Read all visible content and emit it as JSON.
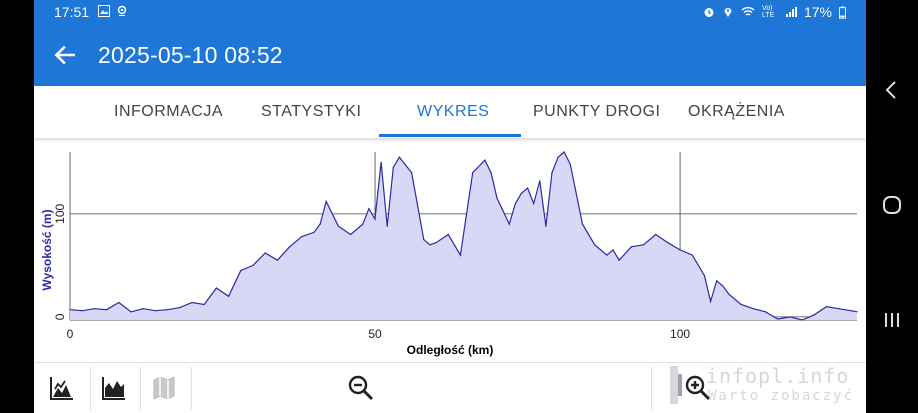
{
  "status_bar": {
    "time": "17:51",
    "battery": "17%",
    "network": "Vo) LTE"
  },
  "app_bar": {
    "title": "2025-05-10 08:52"
  },
  "tabs": [
    {
      "label": "INFORMACJA",
      "active": false
    },
    {
      "label": "STATYSTYKI",
      "active": false
    },
    {
      "label": "WYKRES",
      "active": true
    },
    {
      "label": "PUNKTY DROGI",
      "active": false
    },
    {
      "label": "OKRĄŻENIA",
      "active": false
    }
  ],
  "colors": {
    "primary": "#1e77d6",
    "line": "#2a2aa8",
    "fill": "#d8d8f6"
  },
  "chart_data": {
    "type": "area",
    "xlabel": "Odległość (km)",
    "ylabel": "Wysokość (m)",
    "xlim": [
      0,
      129
    ],
    "ylim": [
      -3,
      160
    ],
    "x_ticks": [
      "0",
      "50",
      "100"
    ],
    "y_ticks": [
      "0",
      "100"
    ],
    "grid": true,
    "series": [
      {
        "x": [
          0,
          2,
          4,
          6,
          8,
          10,
          12,
          14,
          16,
          18,
          20,
          22,
          24,
          26,
          28,
          30,
          32,
          34,
          36,
          38,
          40,
          41,
          42,
          44,
          46,
          48,
          49,
          50,
          51,
          52,
          53,
          54,
          56,
          58,
          59,
          60,
          62,
          64,
          66,
          68,
          69,
          70,
          72,
          73,
          74,
          75,
          76,
          77,
          78,
          79,
          80,
          81,
          82,
          84,
          86,
          88,
          89,
          90,
          92,
          94,
          96,
          98,
          100,
          102,
          104,
          105,
          106,
          107,
          108,
          110,
          112,
          114,
          116,
          118,
          120,
          122,
          124,
          126,
          128,
          129
        ],
        "y": [
          7,
          6,
          8,
          7,
          14,
          5,
          8,
          6,
          7,
          9,
          14,
          12,
          28,
          20,
          45,
          50,
          62,
          55,
          68,
          78,
          82,
          90,
          112,
          88,
          80,
          90,
          105,
          95,
          150,
          88,
          145,
          155,
          140,
          75,
          70,
          72,
          80,
          60,
          140,
          152,
          140,
          115,
          90,
          110,
          120,
          125,
          110,
          132,
          88,
          140,
          155,
          160,
          148,
          90,
          70,
          60,
          65,
          55,
          68,
          70,
          80,
          72,
          65,
          60,
          40,
          15,
          35,
          30,
          22,
          12,
          8,
          5,
          -2,
          0,
          -3,
          2,
          10,
          8,
          6,
          5
        ]
      }
    ]
  },
  "toolbar": {
    "buttons": [
      {
        "icon": "elevation-chart-icon"
      },
      {
        "icon": "speed-chart-icon"
      },
      {
        "icon": "map-icon"
      },
      {
        "icon": "zoom-out-icon"
      },
      {
        "icon": "zoom-in-icon"
      }
    ]
  },
  "watermark": {
    "line1": "infopl.info",
    "line2": "Warto zobaczyć"
  }
}
